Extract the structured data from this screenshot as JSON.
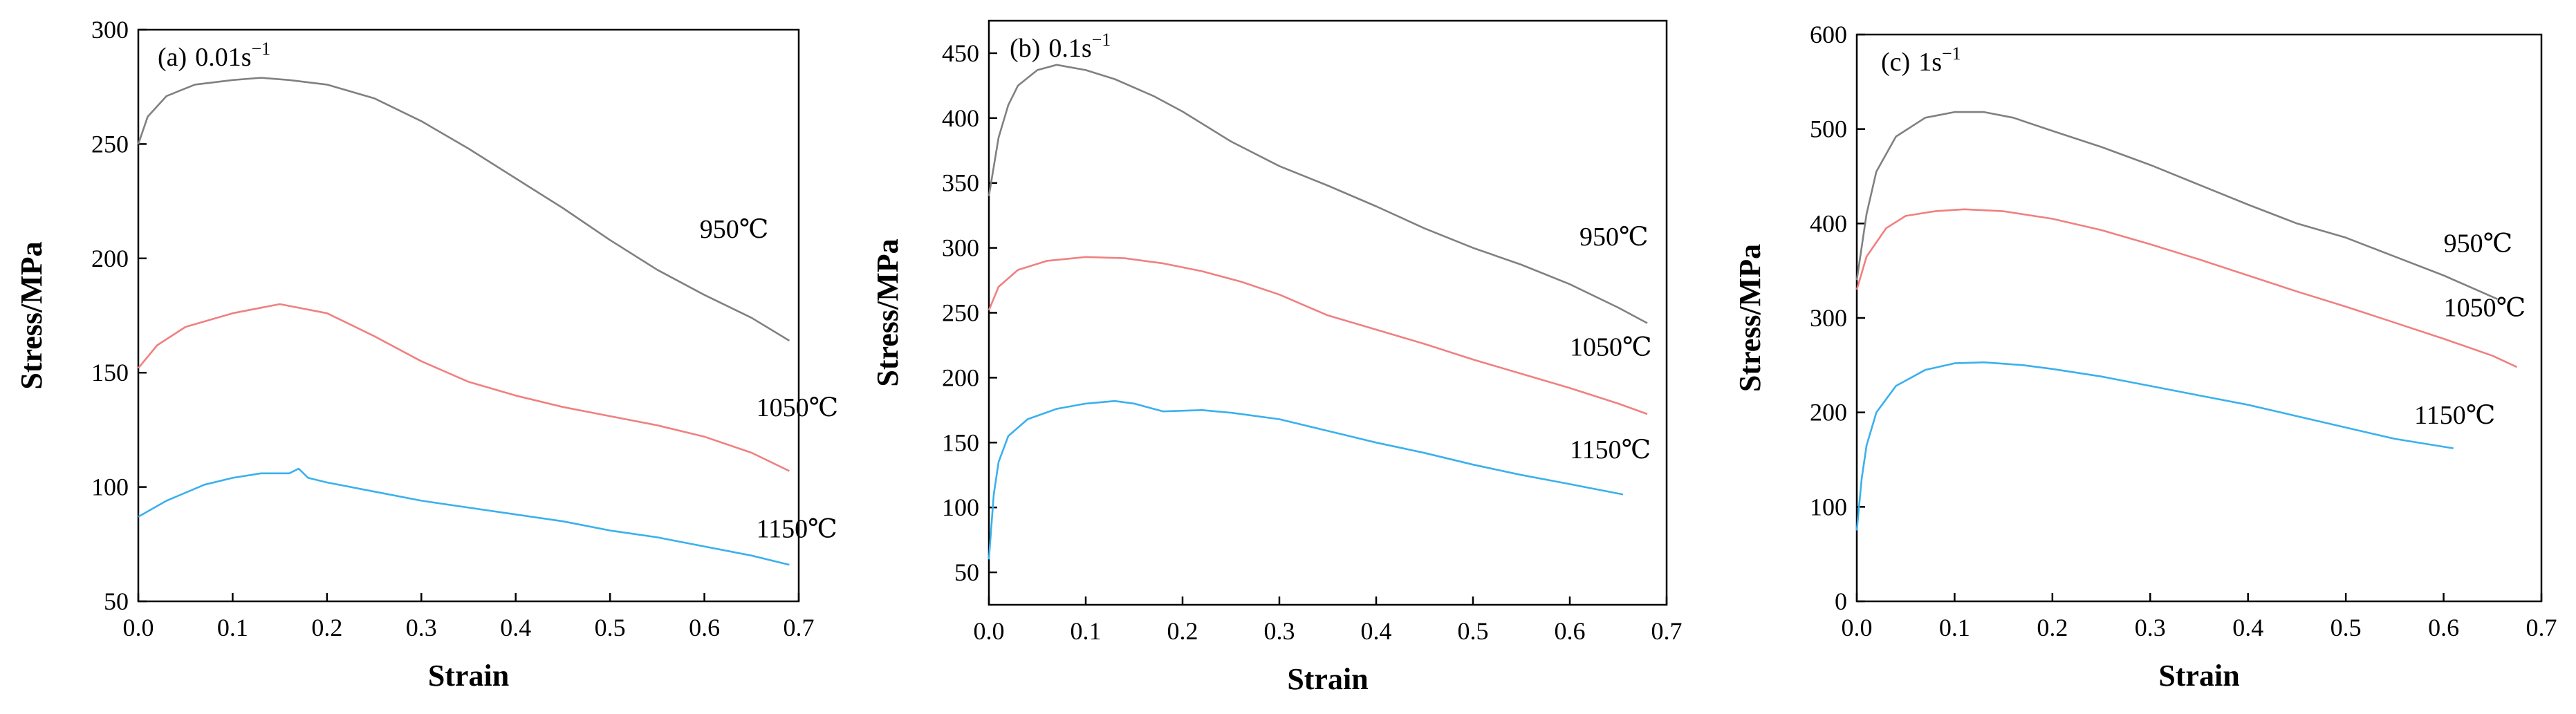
{
  "chart_data": [
    {
      "type": "line",
      "panel_label": "(a)",
      "strain_rate": "0.01s",
      "rate_unit_exponent": "−1",
      "xlabel": "Strain",
      "ylabel": "Stress/MPa",
      "xlim": [
        0,
        0.7
      ],
      "ylim": [
        50,
        300
      ],
      "x_ticks": [
        0.0,
        0.1,
        0.2,
        0.3,
        0.4,
        0.5,
        0.6,
        0.7
      ],
      "x_tick_labels": [
        "0.0",
        "0.1",
        "0.2",
        "0.3",
        "0.4",
        "0.5",
        "0.6",
        "0.7"
      ],
      "y_ticks": [
        50,
        100,
        150,
        200,
        250,
        300
      ],
      "y_tick_labels": [
        "50",
        "100",
        "150",
        "200",
        "250",
        "300"
      ],
      "series": [
        {
          "name": "950℃",
          "color": "#808080",
          "label_at": [
            0.595,
            209
          ],
          "points": [
            [
              0,
              250
            ],
            [
              0.01,
              262
            ],
            [
              0.03,
              271
            ],
            [
              0.06,
              276
            ],
            [
              0.1,
              278
            ],
            [
              0.13,
              279
            ],
            [
              0.16,
              278
            ],
            [
              0.2,
              276
            ],
            [
              0.25,
              270
            ],
            [
              0.3,
              260
            ],
            [
              0.35,
              248
            ],
            [
              0.4,
              235
            ],
            [
              0.45,
              222
            ],
            [
              0.5,
              208
            ],
            [
              0.55,
              195
            ],
            [
              0.6,
              184
            ],
            [
              0.65,
              174
            ],
            [
              0.69,
              164
            ]
          ]
        },
        {
          "name": "1050℃",
          "color": "#f08080",
          "label_at": [
            0.655,
            131
          ],
          "points": [
            [
              0,
              152
            ],
            [
              0.02,
              162
            ],
            [
              0.05,
              170
            ],
            [
              0.1,
              176
            ],
            [
              0.15,
              180
            ],
            [
              0.2,
              176
            ],
            [
              0.25,
              166
            ],
            [
              0.3,
              155
            ],
            [
              0.35,
              146
            ],
            [
              0.4,
              140
            ],
            [
              0.45,
              135
            ],
            [
              0.5,
              131
            ],
            [
              0.55,
              127
            ],
            [
              0.6,
              122
            ],
            [
              0.65,
              115
            ],
            [
              0.69,
              107
            ]
          ]
        },
        {
          "name": "1150℃",
          "color": "#3ab0ee",
          "label_at": [
            0.655,
            78
          ],
          "points": [
            [
              0,
              87
            ],
            [
              0.03,
              94
            ],
            [
              0.07,
              101
            ],
            [
              0.1,
              104
            ],
            [
              0.13,
              106
            ],
            [
              0.16,
              106
            ],
            [
              0.17,
              108
            ],
            [
              0.18,
              104
            ],
            [
              0.2,
              102
            ],
            [
              0.25,
              98
            ],
            [
              0.3,
              94
            ],
            [
              0.35,
              91
            ],
            [
              0.4,
              88
            ],
            [
              0.45,
              85
            ],
            [
              0.5,
              81
            ],
            [
              0.55,
              78
            ],
            [
              0.6,
              74
            ],
            [
              0.65,
              70
            ],
            [
              0.69,
              66
            ]
          ]
        }
      ]
    },
    {
      "type": "line",
      "panel_label": "(b)",
      "strain_rate": "0.1s",
      "rate_unit_exponent": "−1",
      "xlabel": "Strain",
      "ylabel": "Stress/MPa",
      "xlim": [
        0,
        0.7
      ],
      "ylim": [
        25,
        475
      ],
      "x_ticks": [
        0.0,
        0.1,
        0.2,
        0.3,
        0.4,
        0.5,
        0.6,
        0.7
      ],
      "x_tick_labels": [
        "0.0",
        "0.1",
        "0.2",
        "0.3",
        "0.4",
        "0.5",
        "0.6",
        "0.7"
      ],
      "y_ticks": [
        50,
        100,
        150,
        200,
        250,
        300,
        350,
        400,
        450
      ],
      "y_tick_labels": [
        "50",
        "100",
        "150",
        "200",
        "250",
        "300",
        "350",
        "400",
        "450"
      ],
      "series": [
        {
          "name": "950℃",
          "color": "#808080",
          "label_at": [
            0.61,
            302
          ],
          "points": [
            [
              0,
              340
            ],
            [
              0.01,
              385
            ],
            [
              0.02,
              410
            ],
            [
              0.03,
              425
            ],
            [
              0.05,
              437
            ],
            [
              0.07,
              441
            ],
            [
              0.1,
              437
            ],
            [
              0.13,
              430
            ],
            [
              0.17,
              417
            ],
            [
              0.2,
              405
            ],
            [
              0.25,
              382
            ],
            [
              0.3,
              363
            ],
            [
              0.35,
              348
            ],
            [
              0.4,
              332
            ],
            [
              0.45,
              315
            ],
            [
              0.5,
              300
            ],
            [
              0.55,
              287
            ],
            [
              0.6,
              272
            ],
            [
              0.65,
              254
            ],
            [
              0.68,
              242
            ]
          ]
        },
        {
          "name": "1050℃",
          "color": "#f08080",
          "label_at": [
            0.6,
            217
          ],
          "points": [
            [
              0,
              252
            ],
            [
              0.01,
              270
            ],
            [
              0.03,
              283
            ],
            [
              0.06,
              290
            ],
            [
              0.1,
              293
            ],
            [
              0.14,
              292
            ],
            [
              0.18,
              288
            ],
            [
              0.22,
              282
            ],
            [
              0.26,
              274
            ],
            [
              0.3,
              264
            ],
            [
              0.35,
              248
            ],
            [
              0.4,
              237
            ],
            [
              0.45,
              226
            ],
            [
              0.5,
              214
            ],
            [
              0.55,
              203
            ],
            [
              0.6,
              192
            ],
            [
              0.65,
              180
            ],
            [
              0.68,
              172
            ]
          ]
        },
        {
          "name": "1150℃",
          "color": "#3ab0ee",
          "label_at": [
            0.6,
            138
          ],
          "points": [
            [
              0,
              60
            ],
            [
              0.005,
              110
            ],
            [
              0.01,
              135
            ],
            [
              0.02,
              155
            ],
            [
              0.04,
              168
            ],
            [
              0.07,
              176
            ],
            [
              0.1,
              180
            ],
            [
              0.13,
              182
            ],
            [
              0.15,
              180
            ],
            [
              0.18,
              174
            ],
            [
              0.22,
              175
            ],
            [
              0.25,
              173
            ],
            [
              0.3,
              168
            ],
            [
              0.35,
              159
            ],
            [
              0.4,
              150
            ],
            [
              0.45,
              142
            ],
            [
              0.5,
              133
            ],
            [
              0.55,
              125
            ],
            [
              0.6,
              118
            ],
            [
              0.655,
              110
            ]
          ]
        }
      ]
    },
    {
      "type": "line",
      "panel_label": "(c)",
      "strain_rate": "1s",
      "rate_unit_exponent": "−1",
      "xlabel": "Strain",
      "ylabel": "Stress/MPa",
      "xlim": [
        0,
        0.7
      ],
      "ylim": [
        0,
        600
      ],
      "x_ticks": [
        0.0,
        0.1,
        0.2,
        0.3,
        0.4,
        0.5,
        0.6,
        0.7
      ],
      "x_tick_labels": [
        "0.0",
        "0.1",
        "0.2",
        "0.3",
        "0.4",
        "0.5",
        "0.6",
        "0.7"
      ],
      "y_ticks": [
        0,
        100,
        200,
        300,
        400,
        500,
        600
      ],
      "y_tick_labels": [
        "0",
        "100",
        "200",
        "300",
        "400",
        "500",
        "600"
      ],
      "series": [
        {
          "name": "950℃",
          "color": "#808080",
          "label_at": [
            0.6,
            370
          ],
          "points": [
            [
              0,
              340
            ],
            [
              0.01,
              410
            ],
            [
              0.02,
              455
            ],
            [
              0.04,
              492
            ],
            [
              0.07,
              512
            ],
            [
              0.1,
              518
            ],
            [
              0.13,
              518
            ],
            [
              0.16,
              512
            ],
            [
              0.2,
              498
            ],
            [
              0.25,
              481
            ],
            [
              0.3,
              462
            ],
            [
              0.35,
              441
            ],
            [
              0.4,
              420
            ],
            [
              0.45,
              400
            ],
            [
              0.5,
              385
            ],
            [
              0.55,
              365
            ],
            [
              0.6,
              345
            ],
            [
              0.655,
              320
            ]
          ]
        },
        {
          "name": "1050℃",
          "color": "#f08080",
          "label_at": [
            0.6,
            302
          ],
          "points": [
            [
              0,
              330
            ],
            [
              0.01,
              365
            ],
            [
              0.03,
              395
            ],
            [
              0.05,
              408
            ],
            [
              0.08,
              413
            ],
            [
              0.11,
              415
            ],
            [
              0.15,
              413
            ],
            [
              0.2,
              405
            ],
            [
              0.25,
              393
            ],
            [
              0.3,
              378
            ],
            [
              0.35,
              362
            ],
            [
              0.4,
              345
            ],
            [
              0.45,
              328
            ],
            [
              0.5,
              312
            ],
            [
              0.55,
              295
            ],
            [
              0.6,
              278
            ],
            [
              0.65,
              260
            ],
            [
              0.675,
              248
            ]
          ]
        },
        {
          "name": "1150℃",
          "color": "#3ab0ee",
          "label_at": [
            0.57,
            188
          ],
          "points": [
            [
              0,
              75
            ],
            [
              0.005,
              130
            ],
            [
              0.01,
              165
            ],
            [
              0.02,
              200
            ],
            [
              0.04,
              228
            ],
            [
              0.07,
              245
            ],
            [
              0.1,
              252
            ],
            [
              0.13,
              253
            ],
            [
              0.17,
              250
            ],
            [
              0.2,
              246
            ],
            [
              0.25,
              238
            ],
            [
              0.3,
              228
            ],
            [
              0.35,
              218
            ],
            [
              0.4,
              208
            ],
            [
              0.45,
              196
            ],
            [
              0.5,
              184
            ],
            [
              0.55,
              172
            ],
            [
              0.61,
              162
            ]
          ]
        }
      ]
    }
  ]
}
